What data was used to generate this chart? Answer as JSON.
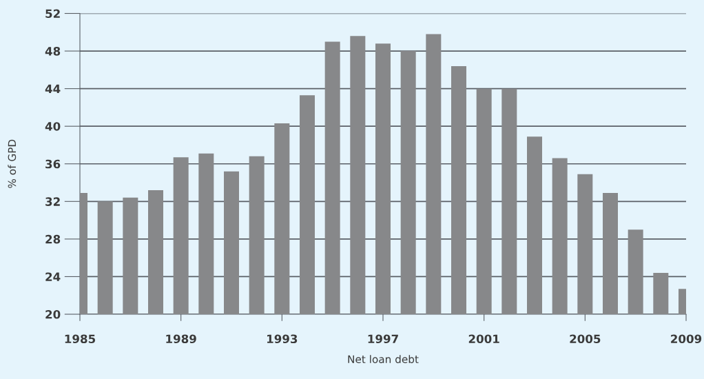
{
  "chart_data": {
    "type": "bar",
    "xlabel": "Net loan debt",
    "ylabel": "% of GPD",
    "x": [
      1985,
      1986,
      1987,
      1988,
      1989,
      1990,
      1991,
      1992,
      1993,
      1994,
      1995,
      1996,
      1997,
      1998,
      1999,
      2000,
      2001,
      2002,
      2003,
      2004,
      2005,
      2006,
      2007,
      2008,
      2009
    ],
    "values": [
      32.9,
      32.0,
      32.4,
      33.2,
      36.7,
      37.1,
      35.2,
      36.8,
      40.3,
      43.3,
      49.0,
      49.6,
      48.8,
      48.0,
      49.8,
      46.4,
      44.0,
      44.0,
      38.9,
      36.6,
      34.9,
      32.9,
      29.0,
      24.4,
      22.7
    ],
    "color": "#87888a",
    "xlim": [
      1985,
      2009
    ],
    "xticks": [
      1985,
      1989,
      1993,
      1997,
      2001,
      2005,
      2009
    ],
    "ylim": [
      20,
      52
    ],
    "yticks": [
      20,
      24,
      28,
      32,
      36,
      40,
      44,
      48,
      52
    ],
    "grid": "y"
  }
}
